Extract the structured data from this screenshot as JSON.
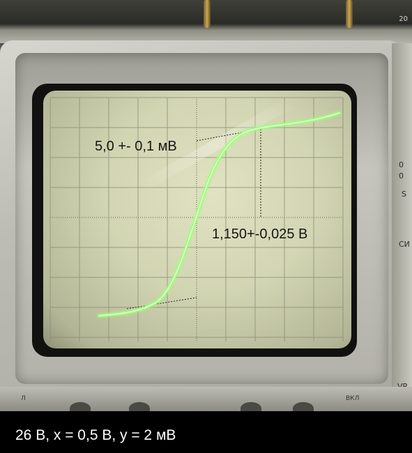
{
  "oscilloscope": {
    "annotation_upper": "5,0 +- 0,1 мВ",
    "annotation_right": "1,150+-0,025 В",
    "trace_color": "#9dff7a",
    "screen_color": "#d6d9b6",
    "grid_color": "#8a8c76",
    "side_label_left_top": "0",
    "side_label_left_mid": "0",
    "side_label_s": "S",
    "side_label_cu": "СИ",
    "side_label_vp": "VP",
    "bottom_label_left": "Л",
    "bottom_label_right": "ВКЛ",
    "corner_label": "20"
  },
  "caption": {
    "text": "26 В, x = 0,5 В, y = 2 мВ"
  }
}
